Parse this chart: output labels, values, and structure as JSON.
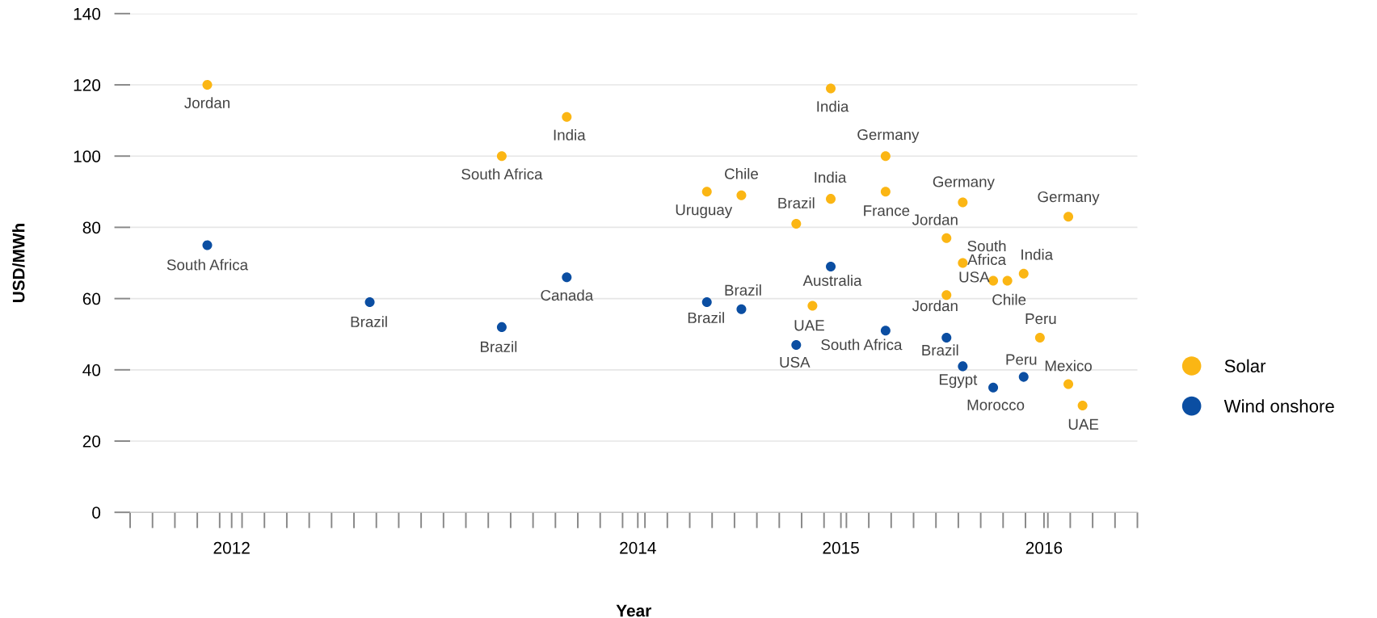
{
  "chart_data": {
    "type": "scatter",
    "xlabel": "Year",
    "ylabel": "USD/MWh",
    "xlim": [
      2011.5,
      2016.46
    ],
    "ylim": [
      0,
      140
    ],
    "xticks": [
      2012,
      2014,
      2015,
      2016
    ],
    "yticks": [
      0,
      20,
      40,
      60,
      80,
      100,
      120,
      140
    ],
    "grid": "y",
    "legend": "right",
    "marker": "circle",
    "series": [
      {
        "name": "Solar",
        "color": "#fbb614",
        "x": [
          2011.88,
          2013.65,
          2013.33,
          2014.34,
          2014.51,
          2014.95,
          2014.95,
          2014.78,
          2014.86,
          2015.22,
          2015.22,
          2015.6,
          2015.52,
          2015.6,
          2015.52,
          2015.75,
          2015.82,
          2015.9,
          2015.98,
          2016.12,
          2016.12,
          2016.19
        ],
        "values": [
          120,
          111,
          100,
          90,
          89,
          119,
          88,
          81,
          58,
          100,
          90,
          87,
          77,
          70,
          61,
          65,
          65,
          67,
          49,
          83,
          36,
          30
        ]
      },
      {
        "name": "Wind onshore",
        "color": "#0b4ea2",
        "x": [
          2011.88,
          2012.68,
          2013.33,
          2013.65,
          2014.34,
          2014.51,
          2014.78,
          2014.95,
          2015.22,
          2015.52,
          2015.6,
          2015.75,
          2015.9
        ],
        "values": [
          75,
          59,
          52,
          66,
          59,
          57,
          47,
          69,
          51,
          49,
          41,
          35,
          38
        ]
      }
    ],
    "annotations": [
      {
        "text": "Jordan",
        "x": 2011.88,
        "y": 120
      },
      {
        "text": "India",
        "x": 2013.65,
        "y": 111
      },
      {
        "text": "South Africa",
        "x": 2013.33,
        "y": 100
      },
      {
        "text": "Uruguay",
        "x": 2014.34,
        "y": 90
      },
      {
        "text": "Chile",
        "x": 2014.51,
        "y": 89
      },
      {
        "text": "India",
        "x": 2014.95,
        "y": 119
      },
      {
        "text": "India",
        "x": 2014.95,
        "y": 88
      },
      {
        "text": "Brazil",
        "x": 2014.78,
        "y": 81
      },
      {
        "text": "UAE",
        "x": 2014.86,
        "y": 58
      },
      {
        "text": "Germany",
        "x": 2015.22,
        "y": 100
      },
      {
        "text": "France",
        "x": 2015.22,
        "y": 90
      },
      {
        "text": "Germany",
        "x": 2015.6,
        "y": 87
      },
      {
        "text": "Jordan",
        "x": 2015.52,
        "y": 77
      },
      {
        "text": "USA",
        "x": 2015.6,
        "y": 70
      },
      {
        "text": "Jordan",
        "x": 2015.52,
        "y": 61
      },
      {
        "text": "South\nAfrica",
        "x": 2015.75,
        "y": 65
      },
      {
        "text": "Chile",
        "x": 2015.82,
        "y": 65
      },
      {
        "text": "India",
        "x": 2015.9,
        "y": 67
      },
      {
        "text": "Peru",
        "x": 2015.98,
        "y": 49
      },
      {
        "text": "Germany",
        "x": 2016.12,
        "y": 83
      },
      {
        "text": "Mexico",
        "x": 2016.12,
        "y": 36
      },
      {
        "text": "UAE",
        "x": 2016.19,
        "y": 30
      },
      {
        "text": "South Africa",
        "x": 2011.88,
        "y": 75
      },
      {
        "text": "Brazil",
        "x": 2012.68,
        "y": 59
      },
      {
        "text": "Brazil",
        "x": 2013.33,
        "y": 52
      },
      {
        "text": "Canada",
        "x": 2013.65,
        "y": 66
      },
      {
        "text": "Brazil",
        "x": 2014.34,
        "y": 59
      },
      {
        "text": "Brazil",
        "x": 2014.51,
        "y": 57
      },
      {
        "text": "USA",
        "x": 2014.78,
        "y": 47
      },
      {
        "text": "Australia",
        "x": 2014.95,
        "y": 69
      },
      {
        "text": "South Africa",
        "x": 2015.22,
        "y": 51
      },
      {
        "text": "Brazil",
        "x": 2015.52,
        "y": 49
      },
      {
        "text": "Egypt",
        "x": 2015.6,
        "y": 41
      },
      {
        "text": "Morocco",
        "x": 2015.75,
        "y": 35
      },
      {
        "text": "Peru",
        "x": 2015.9,
        "y": 38
      }
    ]
  }
}
